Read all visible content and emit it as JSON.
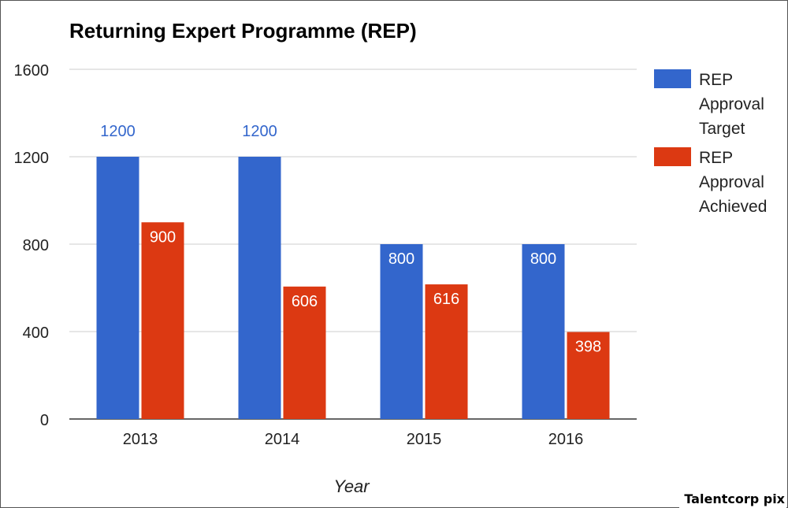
{
  "chart_data": {
    "type": "bar",
    "title": "Returning Expert Programme (REP)",
    "xlabel": "Year",
    "ylabel": "",
    "categories": [
      "2013",
      "2014",
      "2015",
      "2016"
    ],
    "ylim": [
      0,
      1600
    ],
    "yticks": [
      0,
      400,
      800,
      1200,
      1600
    ],
    "grid": true,
    "legend_position": "right",
    "series": [
      {
        "name": "REP Approval Target",
        "legend_lines": [
          "REP",
          "Approval",
          "Target"
        ],
        "color": "#3366cc",
        "values": [
          1200,
          1200,
          800,
          800
        ],
        "data_labels": [
          "1200",
          "1200",
          "800",
          "800"
        ]
      },
      {
        "name": "REP Approval Achieved",
        "legend_lines": [
          "REP",
          "Approval",
          "Achieved"
        ],
        "color": "#dc3912",
        "values": [
          900,
          606,
          616,
          398
        ],
        "data_labels": [
          "900",
          "606",
          "616",
          "398"
        ]
      }
    ]
  },
  "credit": "Talentcorp pix"
}
